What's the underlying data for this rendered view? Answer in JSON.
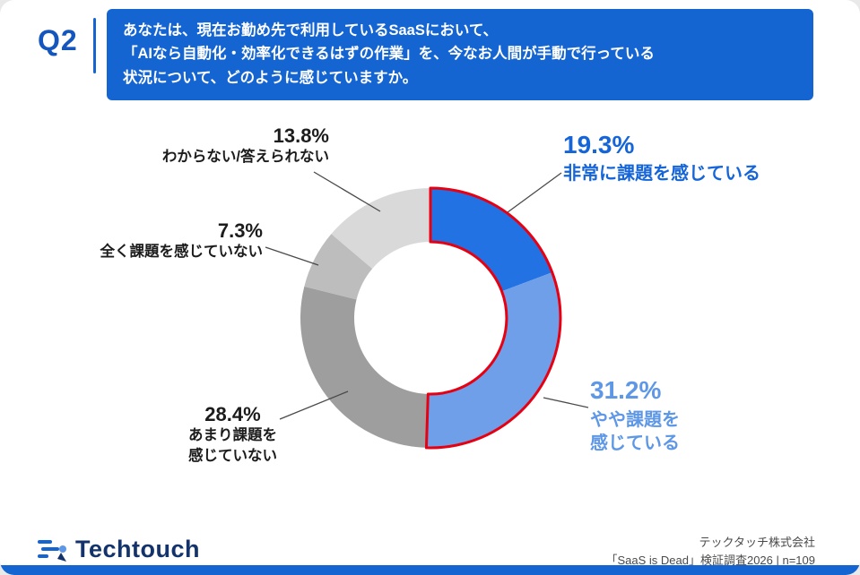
{
  "header": {
    "q_label": "Q2",
    "question_lines": [
      "あなたは、現在お勤め先で利用しているSaaSにおいて、",
      "「AIなら自動化・効率化できるはずの作業」を、今なお人間が手動で行っている",
      "状況について、どのように感じていますか。"
    ]
  },
  "chart_data": {
    "type": "pie",
    "subtype": "donut",
    "title": "あなたは、現在お勤め先で利用しているSaaSにおいて、「AIなら自動化・効率化できるはずの作業」を、今なお人間が手動で行っている状況について、どのように感じていますか。",
    "start_angle_deg": 0,
    "direction": "clockwise",
    "segments": [
      {
        "label": "非常に課題を感じている",
        "value": 19.3,
        "color": "#2272E4"
      },
      {
        "label": "やや課題を感じている",
        "value": 31.2,
        "color": "#6E9FE8"
      },
      {
        "label": "あまり課題を感じていない",
        "value": 28.4,
        "color": "#9E9E9E"
      },
      {
        "label": "全く課題を感じていない",
        "value": 7.3,
        "color": "#BDBDBD"
      },
      {
        "label": "わからない/答えられない",
        "value": 13.8,
        "color": "#D9D9D9"
      }
    ],
    "highlight_outline": {
      "segments": [
        0,
        1
      ],
      "color": "#E60012"
    }
  },
  "callouts": {
    "c193": {
      "pct": "19.3%",
      "label": "非常に課題を感じている"
    },
    "c312": {
      "pct": "31.2%",
      "label": "やや課題を\n感じている"
    },
    "c284": {
      "pct": "28.4%",
      "label": "あまり課題を\n感じていない"
    },
    "c73": {
      "pct": "7.3%",
      "label": "全く課題を感じていない"
    },
    "c138": {
      "pct": "13.8%",
      "label": "わからない/答えられない"
    }
  },
  "footer": {
    "logo_text": "Techtouch",
    "source_line1": "テックタッチ株式会社",
    "source_line2": "「SaaS is Dead」検証調査2026 | n=109"
  }
}
